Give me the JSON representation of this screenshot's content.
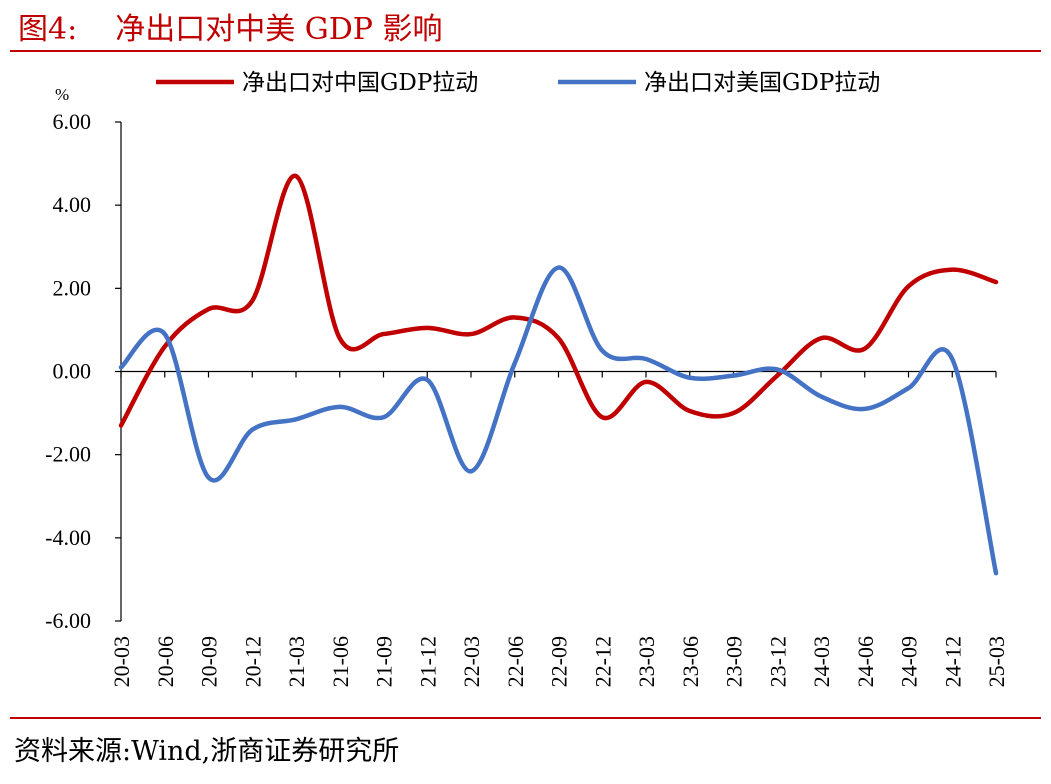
{
  "header": {
    "figure_label": "图4:",
    "title": "净出口对中美 GDP 影响"
  },
  "footer": {
    "source": "资料来源:Wind,浙商证券研究所"
  },
  "chart_data": {
    "type": "line",
    "ylabel": "%",
    "ylim": [
      -6,
      6
    ],
    "yticks": [
      6,
      4,
      2,
      0,
      -2,
      -4,
      -6
    ],
    "ytick_labels": [
      "6.00",
      "4.00",
      "2.00",
      "0.00",
      "-2.00",
      "-4.00",
      "-6.00"
    ],
    "categories": [
      "20-03",
      "20-06",
      "20-09",
      "20-12",
      "21-03",
      "21-06",
      "21-09",
      "21-12",
      "22-03",
      "22-06",
      "22-09",
      "22-12",
      "23-03",
      "23-06",
      "23-09",
      "23-12",
      "24-03",
      "24-06",
      "24-09",
      "24-12",
      "25-03"
    ],
    "legend_position": "top",
    "grid": false,
    "series": [
      {
        "name": "净出口对中国GDP拉动",
        "color": "#c00000",
        "values": [
          -1.3,
          0.6,
          1.5,
          1.7,
          4.7,
          0.8,
          0.9,
          1.05,
          0.9,
          1.3,
          0.8,
          -1.1,
          -0.25,
          -0.95,
          -1.0,
          -0.1,
          0.8,
          0.55,
          2.05,
          2.45,
          2.15
        ]
      },
      {
        "name": "净出口对美国GDP拉动",
        "color": "#4472c4",
        "values": [
          0.1,
          0.9,
          -2.55,
          -1.4,
          -1.15,
          -0.85,
          -1.1,
          -0.2,
          -2.4,
          0.2,
          2.5,
          0.5,
          0.3,
          -0.15,
          -0.1,
          0.05,
          -0.6,
          -0.9,
          -0.4,
          0.3,
          -4.85
        ]
      }
    ]
  }
}
